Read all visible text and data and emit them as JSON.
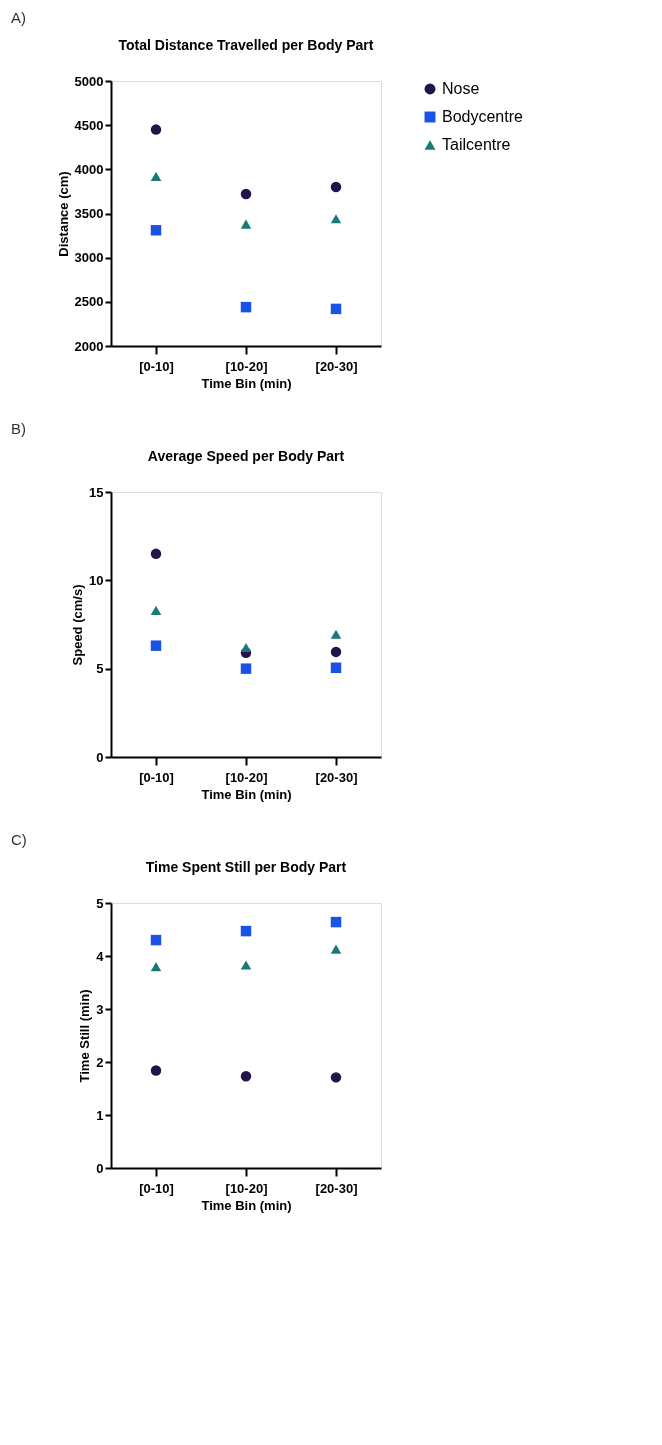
{
  "chart_data": [
    {
      "type": "scatter",
      "title": "Total Distance Travelled per Body Part",
      "xlabel": "Time Bin (min)",
      "ylabel": "Distance (cm)",
      "annotations": [
        "A)"
      ],
      "categories": [
        "[0-10]",
        "[10-20]",
        "[20-30]"
      ],
      "ylim": [
        2000,
        5000
      ],
      "yticks": [
        2000,
        2500,
        3000,
        3500,
        4000,
        4500,
        5000
      ],
      "grid": false,
      "legend": "right",
      "series": [
        {
          "name": "Nose",
          "color": "#24134a",
          "marker": "circle",
          "values": [
            4450,
            3720,
            3800
          ]
        },
        {
          "name": "Bodycentre",
          "color": "#1a52e8",
          "marker": "square",
          "values": [
            3310,
            2440,
            2420
          ]
        },
        {
          "name": "Tailcentre",
          "color": "#1b7878",
          "marker": "triangle",
          "values": [
            3920,
            3380,
            3440
          ]
        }
      ]
    },
    {
      "type": "scatter",
      "title": "Average Speed per Body Part",
      "xlabel": "Time Bin (min)",
      "ylabel": "Speed (cm/s)",
      "annotations": [
        "B)"
      ],
      "categories": [
        "[0-10]",
        "[10-20]",
        "[20-30]"
      ],
      "ylim": [
        0,
        15
      ],
      "yticks": [
        0,
        5,
        10,
        15
      ],
      "grid": false,
      "legend": false,
      "series": [
        {
          "name": "Nose",
          "color": "#24134a",
          "marker": "circle",
          "values": [
            11.5,
            5.9,
            5.95
          ]
        },
        {
          "name": "Bodycentre",
          "color": "#1a52e8",
          "marker": "square",
          "values": [
            6.3,
            5.0,
            5.05
          ]
        },
        {
          "name": "Tailcentre",
          "color": "#1b7878",
          "marker": "triangle",
          "values": [
            8.3,
            6.2,
            6.95
          ]
        }
      ]
    },
    {
      "type": "scatter",
      "title": "Time Spent Still per Body Part",
      "xlabel": "Time Bin (min)",
      "ylabel": "Time Still (min)",
      "annotations": [
        "C)"
      ],
      "categories": [
        "[0-10]",
        "[10-20]",
        "[20-30]"
      ],
      "ylim": [
        0,
        5
      ],
      "yticks": [
        0,
        1,
        2,
        3,
        4,
        5
      ],
      "grid": false,
      "legend": false,
      "series": [
        {
          "name": "Nose",
          "color": "#24134a",
          "marker": "circle",
          "values": [
            1.84,
            1.73,
            1.71
          ]
        },
        {
          "name": "Bodycentre",
          "color": "#1a52e8",
          "marker": "square",
          "values": [
            4.3,
            4.47,
            4.64
          ]
        },
        {
          "name": "Tailcentre",
          "color": "#1b7878",
          "marker": "triangle",
          "values": [
            3.8,
            3.83,
            4.13
          ]
        }
      ]
    }
  ]
}
